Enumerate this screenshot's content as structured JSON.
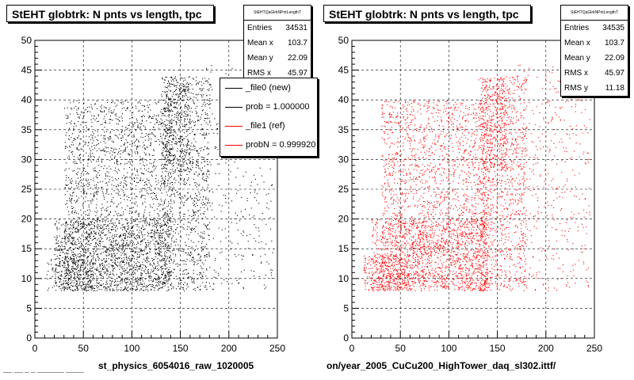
{
  "panels": [
    {
      "title": "StEHT globtrk: N pnts vs length, tpc",
      "stats_header": "StEHTQaGlrkNPntLengthT",
      "stats": [
        {
          "label": "Entries",
          "value": "34531"
        },
        {
          "label": "Mean x",
          "value": "103.7"
        },
        {
          "label": "Mean y",
          "value": "22.09"
        },
        {
          "label": "RMS x",
          "value": "45.97"
        }
      ],
      "xlabel": "st_physics_6054016_raw_1020005",
      "color": "#000000",
      "legend": [
        {
          "label": "_file0 (new)",
          "color": "#000000"
        },
        {
          "label": "prob = 1.000000",
          "color": "#000000"
        },
        {
          "label": "_file1 (ref)",
          "color": "#ff0000"
        },
        {
          "label": "probN = 0.999920",
          "color": "#ff0000"
        }
      ]
    },
    {
      "title": "StEHT globtrk: N pnts vs length, tpc",
      "stats_header": "StEHTQaGlrkNPntLengthT",
      "stats": [
        {
          "label": "Entries",
          "value": "34535"
        },
        {
          "label": "Mean x",
          "value": "103.7"
        },
        {
          "label": "Mean y",
          "value": "22.09"
        },
        {
          "label": "RMS x",
          "value": "45.97"
        },
        {
          "label": "RMS y",
          "value": "11.18"
        }
      ],
      "xlabel": "on/year_2005_CuCu200_HighTower_daq_sl302.ittf/",
      "color": "#ff0000"
    }
  ],
  "corner_text": "── ── ─ ─ ────── ────",
  "chart_data": [
    {
      "type": "scatter",
      "title": "StEHT globtrk: N pnts vs length, tpc",
      "xlabel": "st_physics_6054016_raw_1020005",
      "ylabel": "",
      "xlim": [
        0,
        250
      ],
      "ylim": [
        0,
        50
      ],
      "xticks": [
        "0",
        "50",
        "100",
        "150",
        "200",
        "250"
      ],
      "yticks": [
        "0",
        "5",
        "10",
        "15",
        "20",
        "25",
        "30",
        "35",
        "40",
        "45",
        "50"
      ],
      "grid": true,
      "series_color": "#000000",
      "entries": 34531,
      "density_regions": [
        {
          "x": [
            12,
            60
          ],
          "y": [
            8,
            14
          ],
          "weight": 3
        },
        {
          "x": [
            20,
            140
          ],
          "y": [
            8,
            20
          ],
          "weight": 3
        },
        {
          "x": [
            30,
            140
          ],
          "y": [
            8,
            40
          ],
          "weight": 2
        },
        {
          "x": [
            130,
            180
          ],
          "y": [
            8,
            44
          ],
          "weight": 2
        },
        {
          "x": [
            133,
            160
          ],
          "y": [
            28,
            44
          ],
          "weight": 3
        },
        {
          "x": [
            170,
            245
          ],
          "y": [
            8,
            46
          ],
          "weight": 0.4
        }
      ]
    },
    {
      "type": "scatter",
      "title": "StEHT globtrk: N pnts vs length, tpc",
      "xlabel": "on/year_2005_CuCu200_HighTower_daq_sl302.ittf/",
      "ylabel": "",
      "xlim": [
        0,
        250
      ],
      "ylim": [
        0,
        50
      ],
      "xticks": [
        "0",
        "50",
        "100",
        "150",
        "200",
        "250"
      ],
      "yticks": [
        "0",
        "5",
        "10",
        "15",
        "20",
        "25",
        "30",
        "35",
        "40",
        "45",
        "50"
      ],
      "grid": true,
      "series_color": "#ff0000",
      "entries": 34535,
      "density_regions": [
        {
          "x": [
            12,
            60
          ],
          "y": [
            8,
            14
          ],
          "weight": 3
        },
        {
          "x": [
            20,
            140
          ],
          "y": [
            8,
            20
          ],
          "weight": 2
        },
        {
          "x": [
            30,
            140
          ],
          "y": [
            8,
            40
          ],
          "weight": 1.5
        },
        {
          "x": [
            130,
            180
          ],
          "y": [
            8,
            44
          ],
          "weight": 1.5
        },
        {
          "x": [
            133,
            160
          ],
          "y": [
            28,
            44
          ],
          "weight": 2
        },
        {
          "x": [
            170,
            245
          ],
          "y": [
            8,
            46
          ],
          "weight": 0.4
        }
      ]
    }
  ]
}
